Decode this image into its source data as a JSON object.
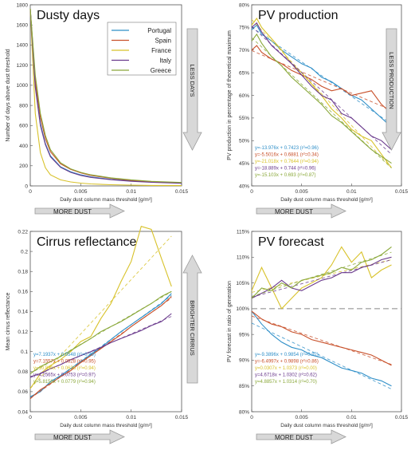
{
  "series_colors": {
    "Portugal": "#2f8fc8",
    "Spain": "#c8502a",
    "France": "#d8c22a",
    "Italy": "#6a3a8c",
    "Greece": "#8aa83a"
  },
  "chart_data": [
    {
      "type": "line",
      "title": "Dusty days",
      "xlabel": "Daily dust column mass threshold [g/m²]",
      "ylabel": "Number of days above dust threshold",
      "xlim": [
        0,
        0.015
      ],
      "ylim": [
        0,
        1800
      ],
      "xticks": [
        "0",
        "0.005",
        "0.01",
        "0.015"
      ],
      "yticks": [
        "0",
        "200",
        "400",
        "600",
        "800",
        "1000",
        "1200",
        "1400",
        "1600",
        "1800"
      ],
      "legend": {
        "placement": "top-right",
        "entries": [
          "Portugal",
          "Spain",
          "France",
          "Italy",
          "Greece"
        ]
      },
      "arrows": {
        "side": "LESS DAYS",
        "bottom": "MORE DUST"
      },
      "x": [
        0,
        0.0005,
        0.001,
        0.0015,
        0.002,
        0.003,
        0.004,
        0.005,
        0.006,
        0.008,
        0.01,
        0.012,
        0.015
      ],
      "series": [
        {
          "name": "Portugal",
          "values": [
            1760,
            1000,
            620,
            420,
            300,
            190,
            140,
            110,
            90,
            65,
            50,
            40,
            30
          ]
        },
        {
          "name": "Spain",
          "values": [
            1760,
            1050,
            680,
            470,
            340,
            220,
            165,
            130,
            105,
            75,
            55,
            42,
            30
          ]
        },
        {
          "name": "France",
          "values": [
            1760,
            720,
            330,
            180,
            110,
            60,
            40,
            28,
            20,
            12,
            8,
            5,
            3
          ]
        },
        {
          "name": "Italy",
          "values": [
            1760,
            980,
            600,
            410,
            290,
            185,
            135,
            105,
            85,
            62,
            46,
            36,
            26
          ]
        },
        {
          "name": "Greece",
          "values": [
            1760,
            1100,
            720,
            500,
            360,
            230,
            170,
            135,
            110,
            80,
            60,
            45,
            34
          ]
        }
      ]
    },
    {
      "type": "line",
      "title": "PV production",
      "xlabel": "Daily dust column mass threshold [g/m²]",
      "ylabel": "PV production in percentage of theoretical maximum",
      "xlim": [
        0,
        0.015
      ],
      "ylim": [
        40,
        80
      ],
      "xticks": [
        "0",
        "0.005",
        "0.01",
        "0.015"
      ],
      "yticks": [
        "40%",
        "45%",
        "50%",
        "55%",
        "60%",
        "65%",
        "70%",
        "75%",
        "80%"
      ],
      "arrows": {
        "side": "LESS PRODUCTION",
        "bottom": "MORE DUST"
      },
      "fit_labels": [
        "y=-13.976x + 0.7423 (r²=0.96)",
        "y=-5.5016x + 0.6881 (r²=0.34)",
        "y=-21.018x + 0.7644 (r²=0.94)",
        "y=-18.889x + 0.744 (r²=0.96)",
        "y=-15.103x + 0.693 (r²=0.87)"
      ],
      "x": [
        0,
        0.0005,
        0.001,
        0.002,
        0.003,
        0.004,
        0.005,
        0.006,
        0.007,
        0.008,
        0.009,
        0.01,
        0.011,
        0.012,
        0.013,
        0.014
      ],
      "series": [
        {
          "name": "Portugal",
          "values": [
            74.5,
            75.5,
            73.5,
            72,
            70,
            68.5,
            67,
            66,
            64,
            63,
            61.5,
            60,
            59,
            57,
            55,
            53
          ]
        },
        {
          "name": "Spain",
          "values": [
            70,
            71,
            69.5,
            68,
            67,
            65.5,
            64.5,
            63.5,
            62,
            61,
            61.5,
            60,
            60.5,
            61,
            58,
            56
          ]
        },
        {
          "name": "France",
          "values": [
            75.5,
            77,
            75,
            72.5,
            70,
            67,
            65,
            62.5,
            60,
            57,
            55,
            52.5,
            51,
            50,
            47,
            44
          ]
        },
        {
          "name": "Italy",
          "values": [
            75,
            76,
            74,
            71,
            69,
            67,
            64.5,
            62,
            60,
            59,
            56,
            55,
            53,
            51,
            50,
            48
          ]
        },
        {
          "name": "Greece",
          "values": [
            72,
            73.5,
            71.5,
            68.5,
            66.5,
            64,
            62,
            60,
            58,
            55.5,
            54,
            52,
            50,
            48,
            46.5,
            45
          ]
        }
      ]
    },
    {
      "type": "line",
      "title": "Cirrus reflectance",
      "xlabel": "Daily dust column mass threshold [g/m²]",
      "ylabel": "Mean cirrus reflectance",
      "xlim": [
        0,
        0.015
      ],
      "ylim": [
        0.04,
        0.22
      ],
      "xticks": [
        "0",
        "0.005",
        "0.01",
        "0.015"
      ],
      "yticks": [
        "0.04",
        "0.06",
        "0.08",
        "0.1",
        "0.12",
        "0.14",
        "0.16",
        "0.18",
        "0.2",
        "0.22"
      ],
      "arrows": {
        "side": "BRIGHTER CIRRUS",
        "bottom": "MORE DUST"
      },
      "fit_labels": [
        "y=7.1937x + 0.0548 (r²=0.99)",
        "y=7.1557x + 0.0528 (r²=0.95)",
        "y=10.890x + 0.0636 (r²=0.94)",
        "y=4.2565x + 0.0753 (r²=0.97)",
        "y=5.8158x + 0.0779 (r²=0.94)"
      ],
      "x": [
        0,
        0.001,
        0.002,
        0.003,
        0.004,
        0.005,
        0.006,
        0.007,
        0.008,
        0.009,
        0.01,
        0.011,
        0.012,
        0.013,
        0.014
      ],
      "series": [
        {
          "name": "Portugal",
          "values": [
            0.055,
            0.06,
            0.07,
            0.076,
            0.083,
            0.09,
            0.097,
            0.104,
            0.112,
            0.12,
            0.127,
            0.134,
            0.141,
            0.148,
            0.158
          ]
        },
        {
          "name": "Spain",
          "values": [
            0.053,
            0.062,
            0.068,
            0.075,
            0.081,
            0.089,
            0.096,
            0.103,
            0.11,
            0.117,
            0.125,
            0.132,
            0.139,
            0.146,
            0.155
          ]
        },
        {
          "name": "France",
          "values": [
            0.063,
            0.078,
            0.086,
            0.092,
            0.1,
            0.11,
            0.115,
            0.133,
            0.148,
            0.17,
            0.19,
            0.225,
            0.222,
            0.193,
            0.165
          ]
        },
        {
          "name": "Italy",
          "values": [
            0.075,
            0.078,
            0.083,
            0.087,
            0.092,
            0.096,
            0.1,
            0.104,
            0.109,
            0.113,
            0.117,
            0.121,
            0.126,
            0.13,
            0.138
          ]
        },
        {
          "name": "Greece",
          "values": [
            0.078,
            0.085,
            0.09,
            0.095,
            0.101,
            0.107,
            0.113,
            0.12,
            0.125,
            0.13,
            0.136,
            0.142,
            0.148,
            0.155,
            0.16
          ]
        }
      ]
    },
    {
      "type": "line",
      "title": "PV forecast",
      "xlabel": "Daily dust column mass threshold [g/m²]",
      "ylabel": "PV forecast in ratio of generation",
      "xlim": [
        0,
        0.015
      ],
      "ylim": [
        80,
        115
      ],
      "xticks": [
        "0",
        "0.005",
        "0.01",
        "0.015"
      ],
      "yticks": [
        "80%",
        "85%",
        "90%",
        "95%",
        "100%",
        "105%",
        "110%",
        "115%"
      ],
      "reference_y": 100,
      "arrows": {
        "bottom": "MORE DUST"
      },
      "fit_labels": [
        "y=-9.3896x + 0.9854 (r²=0.92)",
        "y=-6.4997x + 0.9898 (r²=0.86)",
        "y=0.0307x + 1.0373 (r²=0.00)",
        "y=4.6718x + 1.0302 (r²=0.62)",
        "y=4.8857x + 1.0314 (r²=0.70)"
      ],
      "x": [
        0,
        0.001,
        0.002,
        0.003,
        0.004,
        0.005,
        0.006,
        0.007,
        0.008,
        0.009,
        0.01,
        0.011,
        0.012,
        0.013,
        0.014
      ],
      "series": [
        {
          "name": "Portugal",
          "values": [
            99.5,
            97,
            95,
            93.5,
            92.5,
            92,
            91,
            90.5,
            89.5,
            88.5,
            88,
            87.5,
            86.5,
            86,
            85
          ]
        },
        {
          "name": "Spain",
          "values": [
            99.5,
            98,
            97,
            96.5,
            95.5,
            95,
            94,
            93.5,
            93,
            92.5,
            92,
            91.5,
            91,
            90,
            89
          ]
        },
        {
          "name": "France",
          "values": [
            103.5,
            108,
            104,
            100,
            102,
            104,
            105,
            106,
            108.5,
            112,
            109,
            111,
            106,
            107.5,
            108.5
          ]
        },
        {
          "name": "Italy",
          "values": [
            102,
            103,
            104,
            105.5,
            104,
            103.5,
            104.5,
            105.5,
            106,
            107,
            107,
            108,
            108.5,
            109.5,
            110
          ]
        },
        {
          "name": "Greece",
          "values": [
            102,
            104,
            103.5,
            105,
            104,
            105.5,
            106,
            106.5,
            107,
            108,
            107.5,
            109,
            109.5,
            110.5,
            112
          ]
        }
      ]
    }
  ]
}
